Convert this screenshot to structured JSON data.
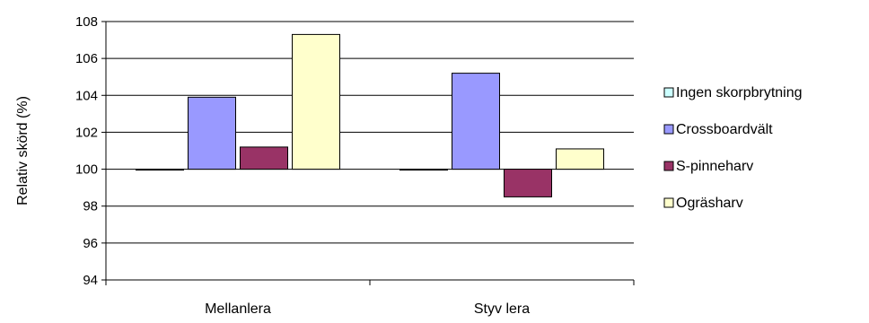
{
  "chart_data": {
    "type": "bar",
    "title": "",
    "xlabel": "",
    "ylabel": "Relativ skörd (%)",
    "ylim": [
      94,
      108
    ],
    "yticks": [
      94,
      96,
      98,
      100,
      102,
      104,
      106,
      108
    ],
    "categories": [
      "Mellanlera",
      "Styv lera"
    ],
    "grid": "horizontal",
    "legend_position": "right",
    "baseline": 100,
    "series": [
      {
        "name": "Ingen skorpbrytning",
        "color": "#ccffff",
        "values": [
          100,
          100
        ]
      },
      {
        "name": "Crossboardvält",
        "color": "#9999ff",
        "values": [
          103.9,
          105.2
        ]
      },
      {
        "name": "S-pinneharv",
        "color": "#993366",
        "values": [
          101.2,
          98.5
        ]
      },
      {
        "name": "Ogräsharv",
        "color": "#ffffcc",
        "values": [
          107.3,
          101.1
        ]
      }
    ]
  }
}
